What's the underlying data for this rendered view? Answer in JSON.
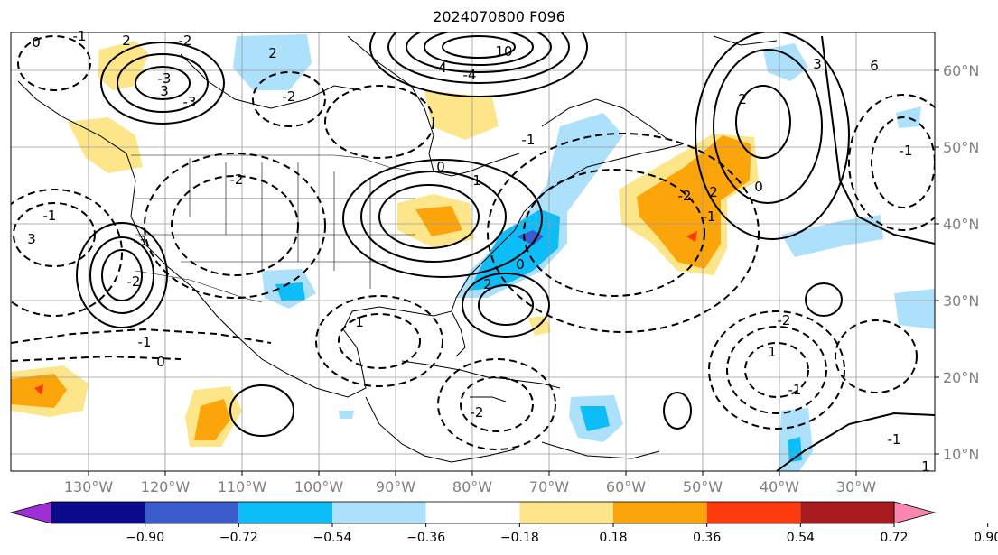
{
  "title": "2024070800 F096",
  "lon_ticks": [
    "130°W",
    "120°W",
    "110°W",
    "100°W",
    "90°W",
    "80°W",
    "70°W",
    "60°W",
    "50°W",
    "40°W",
    "30°W"
  ],
  "lat_ticks": [
    "60°N",
    "50°N",
    "40°N",
    "30°N",
    "20°N",
    "10°N"
  ],
  "colorbar": {
    "colors": [
      "#9c2fd6",
      "#0a0a8a",
      "#3a5ccc",
      "#0cbdf7",
      "#ace0fb",
      "#ffffff",
      "#fde68a",
      "#fca50a",
      "#fc3a0e",
      "#a81c20",
      "#fb86b0"
    ],
    "ticks": [
      "−0.90",
      "−0.72",
      "−0.54",
      "−0.36",
      "−0.18",
      "0.18",
      "0.36",
      "0.54",
      "0.72",
      "0.90"
    ]
  },
  "contour_labels": [
    "0",
    "-1",
    "2",
    "-2",
    "3",
    "-3",
    "10",
    "4",
    "-4",
    "-3",
    "-2",
    "2",
    "-1",
    "0",
    "1",
    "-2",
    "-1",
    "3",
    "3",
    "6",
    "2",
    "-2",
    "2",
    "-1",
    "0",
    "-1",
    "-3",
    "2",
    "-2",
    "1",
    "0",
    "-1",
    "0",
    "-2",
    "1",
    "-2",
    "-1",
    "-1",
    "1"
  ]
}
